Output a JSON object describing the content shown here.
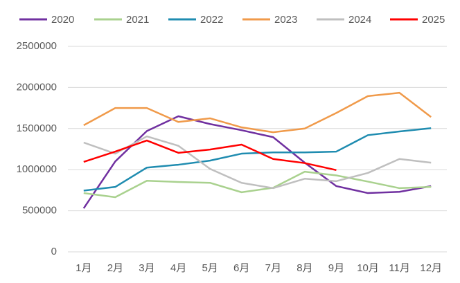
{
  "chart_data": {
    "type": "line",
    "categories": [
      "1月",
      "2月",
      "3月",
      "4月",
      "5月",
      "6月",
      "7月",
      "8月",
      "9月",
      "10月",
      "11月",
      "12月"
    ],
    "series": [
      {
        "name": "2020",
        "color": "#7030a0",
        "values": [
          530000,
          1100000,
          1470000,
          1650000,
          1555000,
          1480000,
          1395000,
          1085000,
          800000,
          715000,
          730000,
          800000
        ]
      },
      {
        "name": "2021",
        "color": "#a9d18e",
        "values": [
          715000,
          665000,
          865000,
          850000,
          840000,
          725000,
          780000,
          975000,
          930000,
          855000,
          775000,
          790000
        ]
      },
      {
        "name": "2022",
        "color": "#1f8cb0",
        "values": [
          745000,
          790000,
          1025000,
          1060000,
          1110000,
          1195000,
          1210000,
          1210000,
          1220000,
          1420000,
          1465000,
          1505000
        ]
      },
      {
        "name": "2023",
        "color": "#f09a4a",
        "values": [
          1540000,
          1750000,
          1750000,
          1580000,
          1625000,
          1515000,
          1455000,
          1500000,
          1690000,
          1895000,
          1935000,
          1640000
        ]
      },
      {
        "name": "2024",
        "color": "#bfbfbf",
        "values": [
          1330000,
          1195000,
          1405000,
          1290000,
          1010000,
          840000,
          775000,
          890000,
          860000,
          960000,
          1130000,
          1085000
        ]
      },
      {
        "name": "2025",
        "color": "#ff0000",
        "values": [
          1095000,
          1220000,
          1355000,
          1205000,
          1245000,
          1305000,
          1130000,
          1080000,
          995000,
          null,
          null,
          null
        ]
      }
    ],
    "ylim": [
      0,
      2500000
    ],
    "yticks": [
      0,
      500000,
      1000000,
      1500000,
      2000000,
      2500000
    ],
    "grid": true,
    "legend": "top"
  }
}
